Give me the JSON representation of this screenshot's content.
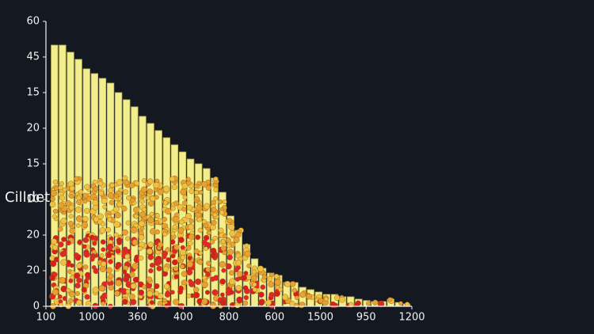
{
  "chart_data": {
    "type": "histogram",
    "ylabel": "Cilldet",
    "color": "#f3ee8c",
    "edge_color": "#b8b05a",
    "background": "#141820",
    "bins": [
      0.1,
      0.275,
      0.45,
      0.625,
      0.8,
      0.975,
      1.15,
      1.325,
      1.5,
      1.675,
      1.85,
      2.025,
      2.2,
      2.375,
      2.55,
      2.725,
      2.9,
      3.075,
      3.25,
      3.425,
      3.6,
      3.775,
      3.95,
      4.125,
      4.3,
      4.475,
      4.65,
      4.825,
      5.0,
      5.175,
      5.35,
      5.525,
      5.7,
      5.875,
      6.05,
      6.225,
      6.4,
      6.575,
      6.75,
      6.925,
      7.1,
      7.275,
      7.45,
      7.625,
      7.8,
      7.975
    ],
    "values": [
      55,
      55,
      53.5,
      52,
      50,
      49,
      48,
      47,
      45,
      43.5,
      42,
      40,
      38.5,
      37,
      35.5,
      34,
      32.5,
      31,
      30,
      29,
      27,
      24,
      19,
      16,
      13,
      10,
      8,
      7,
      6.5,
      5,
      5,
      4,
      3.5,
      3,
      2.5,
      2.5,
      2,
      2,
      1.5,
      1.2,
      1,
      1,
      1.5,
      0.8,
      0.5
    ],
    "xlim": [
      0,
      8
    ],
    "xticks": [
      {
        "value": 0,
        "label": "100"
      },
      {
        "value": 1,
        "label": "1000"
      },
      {
        "value": 2,
        "label": "360"
      },
      {
        "value": 3,
        "label": "400"
      },
      {
        "value": 4,
        "label": "800"
      },
      {
        "value": 5,
        "label": "600"
      },
      {
        "value": 6,
        "label": "1500"
      },
      {
        "value": 7,
        "label": "950"
      },
      {
        "value": 8,
        "label": "1200"
      }
    ],
    "ylim": [
      0,
      60
    ],
    "yticks": [
      0,
      {
        "value": 7.5,
        "label": "20"
      },
      {
        "value": 15,
        "label": "20"
      },
      {
        "value": 22.5,
        "label": "10"
      },
      {
        "value": 30,
        "label": "15"
      },
      {
        "value": 37.5,
        "label": "20"
      },
      {
        "value": 45,
        "label": "15"
      },
      {
        "value": 52.5,
        "label": "45"
      },
      60
    ]
  }
}
